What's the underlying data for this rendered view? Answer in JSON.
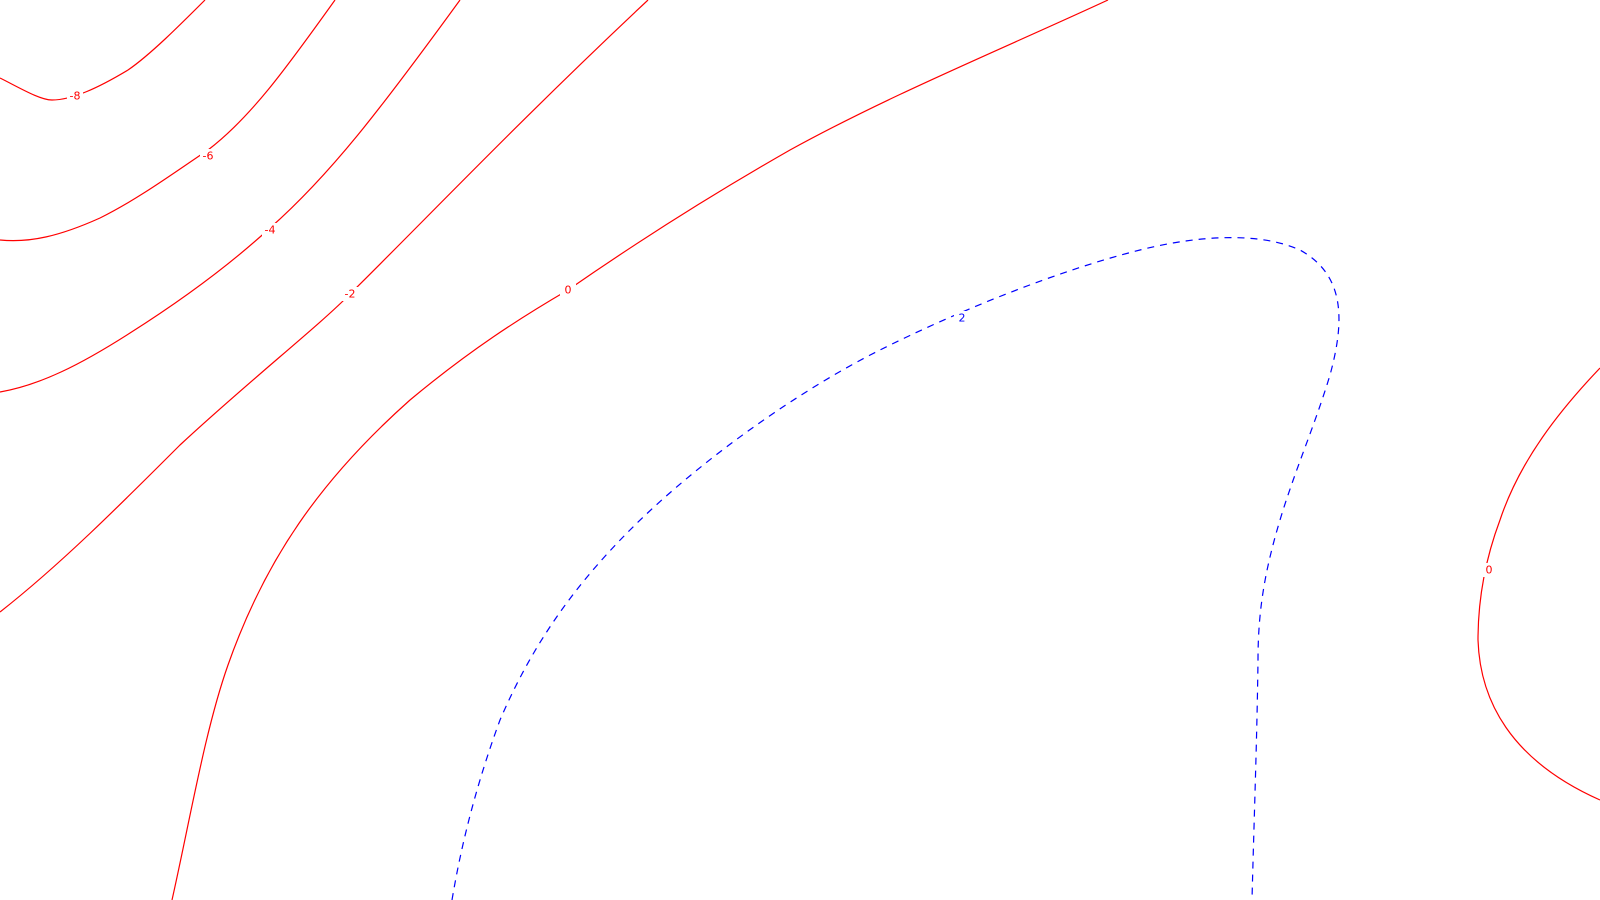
{
  "chart_data": {
    "type": "contour",
    "title": "",
    "xlabel": "",
    "ylabel": "",
    "grid": false,
    "legend": "none",
    "colors": {
      "negative_and_zero": "#ff0000",
      "positive": "#0000ff"
    },
    "line_styles": {
      "negative_and_zero": "solid",
      "positive": "dashed"
    },
    "levels": [
      {
        "id": "m8",
        "value": -8,
        "label": "-8",
        "style": "solid",
        "color": "#ff0000"
      },
      {
        "id": "m6",
        "value": -6,
        "label": "-6",
        "style": "solid",
        "color": "#ff0000"
      },
      {
        "id": "m4",
        "value": -4,
        "label": "-4",
        "style": "solid",
        "color": "#ff0000"
      },
      {
        "id": "m2",
        "value": -2,
        "label": "-2",
        "style": "solid",
        "color": "#ff0000"
      },
      {
        "id": "z0a",
        "value": 0,
        "label": "0",
        "style": "solid",
        "color": "#ff0000"
      },
      {
        "id": "p2",
        "value": 2,
        "label": "2",
        "style": "dashed",
        "color": "#0000ff"
      },
      {
        "id": "z0b",
        "value": 0,
        "label": "0",
        "style": "solid",
        "color": "#ff0000"
      }
    ]
  }
}
